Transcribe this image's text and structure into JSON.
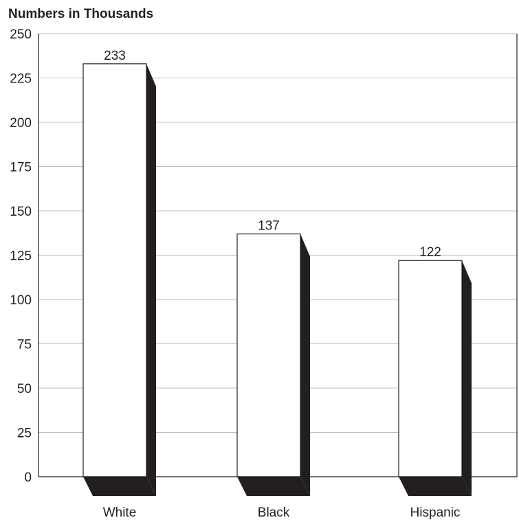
{
  "chart_data": {
    "type": "bar",
    "title": "Numbers in Thousands",
    "xlabel": "",
    "ylabel": "",
    "categories": [
      "White",
      "Black",
      "Hispanic"
    ],
    "values": [
      233,
      137,
      122
    ],
    "data_labels": [
      "233",
      "137",
      "122"
    ],
    "ylim": [
      0,
      250
    ],
    "yticks": [
      0,
      25,
      50,
      75,
      100,
      125,
      150,
      175,
      200,
      225,
      250
    ],
    "ytick_labels": [
      "0",
      "25",
      "50",
      "75",
      "100",
      "125",
      "150",
      "175",
      "200",
      "225",
      "250"
    ],
    "grid": true,
    "legend": "none",
    "colors": {
      "bar_face": "#ffffff",
      "bar_shadow": "#231f20",
      "gridline": "#bcbec0",
      "axis": "#231f20",
      "text": "#231f20"
    }
  }
}
